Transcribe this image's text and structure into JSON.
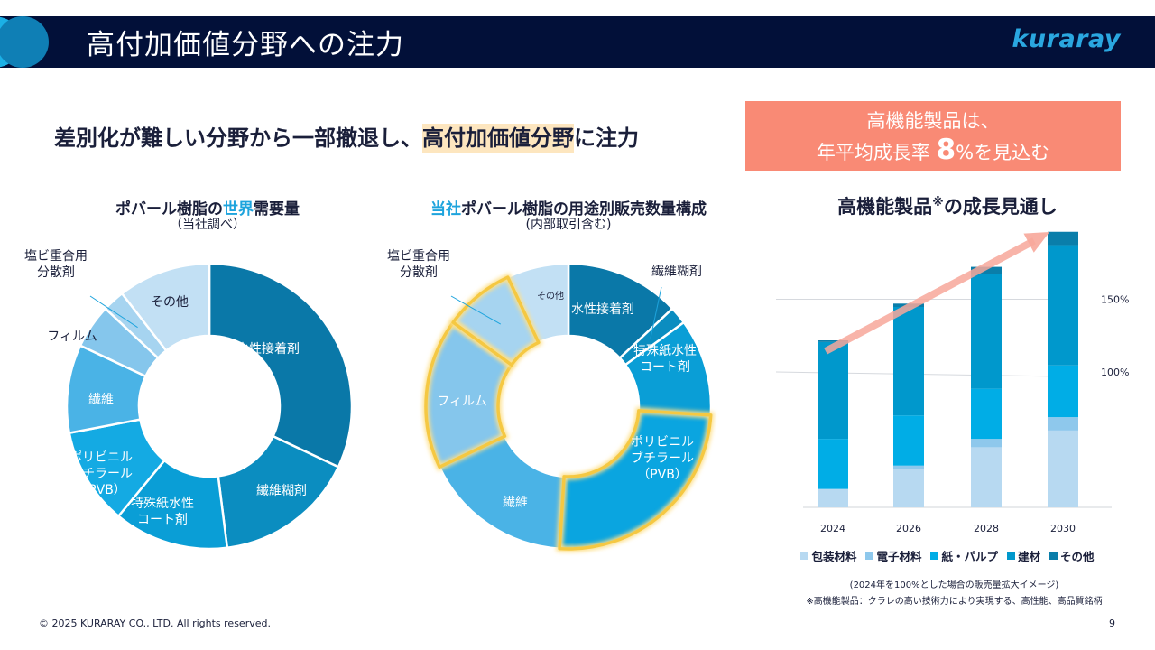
{
  "header": {
    "title": "高付加価値分野への注力",
    "logo": "kuraray"
  },
  "subtitle": {
    "pre": "差別化が難しい分野から一部撤退し、",
    "highlight": "高付加価値分野",
    "post": "に注力"
  },
  "callout": {
    "line1": "高機能製品は、",
    "line2_pre": "年平均成長率 ",
    "line2_big": "8",
    "line2_post": "%を見込む"
  },
  "colors": {
    "header_bg": "#021039",
    "accent": "#1ea4dd",
    "callout_bg": "#f98a75",
    "highlight_bg": "#fde6bf",
    "arrow": "#f7a79a",
    "glow": "#f5c842"
  },
  "chart_data": [
    {
      "type": "pie",
      "donut": true,
      "title_pre": "ポバール樹脂の",
      "title_accent": "世界",
      "title_post": "需要量",
      "subtitle": "（当社調べ）",
      "slices": [
        {
          "label": "水性接着剤",
          "value": 32,
          "color": "#0a78a8",
          "label_color": "#ffffff"
        },
        {
          "label": "繊維糊剤",
          "value": 16,
          "color": "#0b8dc0",
          "label_color": "#ffffff"
        },
        {
          "label": "特殊紙水性コート剤",
          "label_lines": [
            "特殊紙水性",
            "コート剤"
          ],
          "value": 13,
          "color": "#0a9ed6",
          "label_color": "#ffffff"
        },
        {
          "label": "ポリビニルブチラール（PVB）",
          "label_lines": [
            "ポリビニル",
            "ブチラール",
            "（PVB）"
          ],
          "value": 11,
          "color": "#14aae3",
          "label_color": "#ffffff"
        },
        {
          "label": "繊維",
          "value": 10,
          "color": "#4ab3e6",
          "label_color": "#ffffff"
        },
        {
          "label": "フィルム",
          "value": 5,
          "color": "#85c6ec",
          "label_color": "#1a1f3a",
          "external": true
        },
        {
          "label": "塩ビ重合用分散剤",
          "label_lines": [
            "塩ビ重合用",
            "分散剤"
          ],
          "value": 2.5,
          "color": "#a6d4f0",
          "label_color": "#1a1f3a",
          "external": true
        },
        {
          "label": "その他",
          "value": 10.5,
          "color": "#c2e0f4",
          "label_color": "#1a1f3a"
        }
      ]
    },
    {
      "type": "pie",
      "donut": true,
      "title_accent": "当社",
      "title_post": "ポバール樹脂の用途別販売数量構成",
      "subtitle": "(内部取引含む)",
      "highlighted": [
        "ポリビニルブチラール（PVB）",
        "フィルム",
        "塩ビ重合用分散剤"
      ],
      "slices": [
        {
          "label": "水性接着剤",
          "value": 13,
          "color": "#0a78a8",
          "label_color": "#ffffff"
        },
        {
          "label": "繊維糊剤",
          "value": 2,
          "color": "#0b8dc0",
          "label_color": "#1a1f3a",
          "external": true
        },
        {
          "label": "特殊紙水性コート剤",
          "label_lines": [
            "特殊紙水性",
            "コート剤"
          ],
          "value": 11,
          "color": "#0a9ed6",
          "label_color": "#ffffff"
        },
        {
          "label": "ポリビニルブチラール（PVB）",
          "label_lines": [
            "ポリビニル",
            "ブチラール",
            "（PVB）"
          ],
          "value": 25,
          "color": "#0aa5e0",
          "label_color": "#ffffff"
        },
        {
          "label": "繊維",
          "value": 17,
          "color": "#4ab3e6",
          "label_color": "#ffffff"
        },
        {
          "label": "フィルム",
          "value": 17,
          "color": "#85c6ec",
          "label_color": "#ffffff"
        },
        {
          "label": "塩ビ重合用分散剤",
          "label_lines": [
            "塩ビ重合用",
            "分散剤"
          ],
          "value": 8,
          "color": "#a6d4f0",
          "label_color": "#1a1f3a",
          "external": true
        },
        {
          "label": "その他",
          "value": 7,
          "color": "#c2e0f4",
          "label_color": "#1a1f3a",
          "small": true
        }
      ]
    },
    {
      "type": "bar",
      "stacked": true,
      "title": "高機能製品",
      "title_mark": "※",
      "title_post": "の成長見通し",
      "categories": [
        "2024",
        "2026",
        "2028",
        "2030"
      ],
      "series": [
        {
          "name": "包装材料",
          "color": "#b7d9f1",
          "values": [
            11,
            23,
            36,
            46
          ]
        },
        {
          "name": "電子材料",
          "color": "#8ec8ec",
          "values": [
            0,
            2,
            5,
            8
          ]
        },
        {
          "name": "紙・パルプ",
          "color": "#00ade6",
          "values": [
            30,
            30,
            30,
            31
          ]
        },
        {
          "name": "建材",
          "color": "#0098cc",
          "values": [
            58,
            65,
            69,
            72
          ]
        },
        {
          "name": "その他",
          "color": "#0a7eaa",
          "values": [
            1,
            2,
            4,
            8
          ]
        }
      ],
      "ytick_labels": [
        {
          "value": 100,
          "label": "100%"
        },
        {
          "value": 150,
          "label": "150%"
        }
      ],
      "ylim": [
        0,
        170
      ],
      "trend_arrow": {
        "from_category": "2024",
        "to_category": "2030"
      },
      "legend_position": "bottom",
      "notes": [
        "(2024年を100%とした場合の販売量拡大イメージ)",
        "※高機能製品：クラレの高い技術力により実現する、高性能、高品質銘柄"
      ]
    }
  ],
  "footer": {
    "copyright": "© 2025 KURARAY CO., LTD. All rights reserved.",
    "page": "9"
  }
}
